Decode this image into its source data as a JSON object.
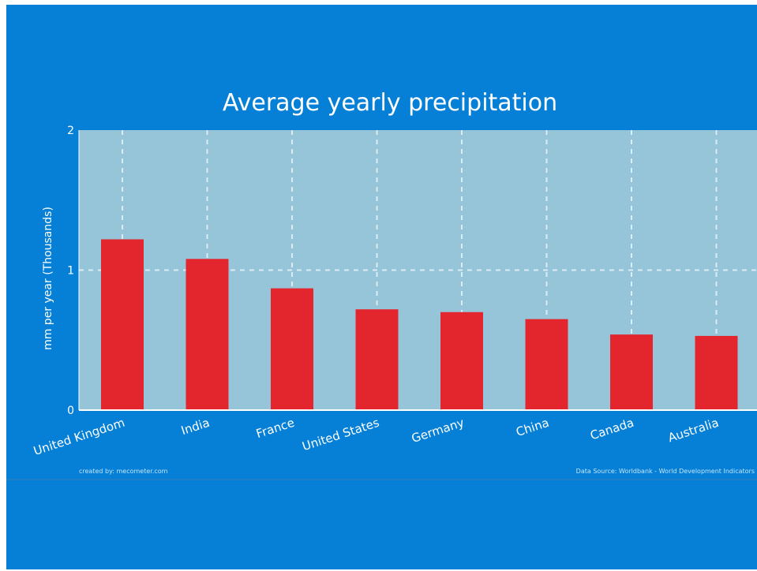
{
  "chart_data": {
    "type": "bar",
    "title": "Average yearly precipitation",
    "ylabel": "mm per year (Thousands)",
    "xlabel": "",
    "categories": [
      "United Kingdom",
      "India",
      "France",
      "United States",
      "Germany",
      "China",
      "Canada",
      "Australia"
    ],
    "values": [
      1.22,
      1.08,
      0.87,
      0.72,
      0.7,
      0.65,
      0.54,
      0.53
    ],
    "ylim": [
      0,
      2
    ],
    "yticks": [
      "0",
      "1",
      "2"
    ],
    "grid": true,
    "legend": "none"
  },
  "colors": {
    "page_background": "#0580d6",
    "plot_background": "#96c5d9",
    "bar": "#e3262e",
    "grid": "#dcecf4",
    "text": "#ffffff"
  },
  "footer": {
    "credit": "created by: mecometer.com",
    "source": "Data Source: Worldbank - World Development Indicators"
  }
}
